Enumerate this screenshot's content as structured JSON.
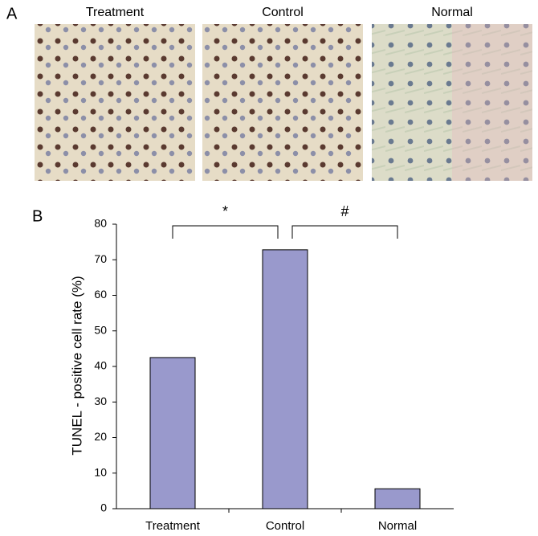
{
  "figure": {
    "panel_labels": [
      "A",
      "B"
    ],
    "image_titles": [
      "Treatment",
      "Control",
      "Normal"
    ]
  },
  "chart_data": {
    "type": "bar",
    "ylabel": "TUNEL - positive cell rate (%)",
    "categories": [
      "Treatment",
      "Control",
      "Normal"
    ],
    "values": [
      42.5,
      72.8,
      5.6
    ],
    "color": "#9999cc",
    "ylim": [
      0,
      80
    ],
    "yticks": [
      0,
      10,
      20,
      30,
      40,
      50,
      60,
      70,
      80
    ],
    "annotations": [
      "*",
      "#"
    ]
  }
}
